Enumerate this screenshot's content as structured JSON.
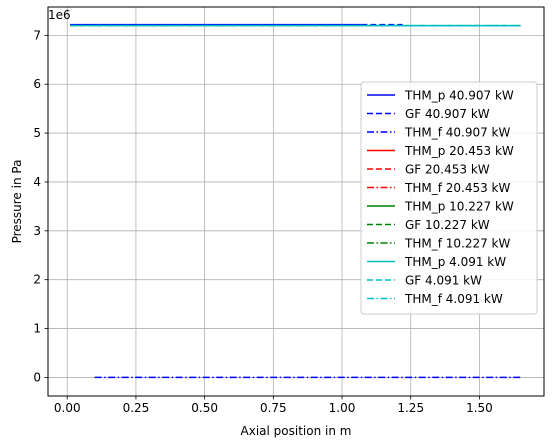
{
  "chart_data": {
    "type": "line",
    "title": "",
    "xlabel": "Axial position in m",
    "ylabel": "Pressure in Pa",
    "y_offset_label": "1e6",
    "xlim": [
      -0.07,
      1.735
    ],
    "ylim": [
      -0.38,
      7.58
    ],
    "y_scale_factor": 1000000,
    "x_ticks": [
      0.0,
      0.25,
      0.5,
      0.75,
      1.0,
      1.25,
      1.5
    ],
    "x_tick_labels": [
      "0.00",
      "0.25",
      "0.50",
      "0.75",
      "1.00",
      "1.25",
      "1.50"
    ],
    "y_ticks": [
      0,
      1,
      2,
      3,
      4,
      5,
      6,
      7
    ],
    "y_tick_labels": [
      "0",
      "1",
      "2",
      "3",
      "4",
      "5",
      "6",
      "7"
    ],
    "grid": true,
    "legend_position": "right",
    "series": [
      {
        "name": "THM_p 40.907 kW",
        "color": "#0000ff",
        "style": "solid",
        "x": [
          0.01,
          1.07
        ],
        "y": [
          7.22,
          7.22
        ]
      },
      {
        "name": "GF 40.907 kW",
        "color": "#0000ff",
        "style": "dashed",
        "x": [
          1.07,
          1.22
        ],
        "y": [
          7.22,
          7.22
        ]
      },
      {
        "name": "THM_f 40.907 kW",
        "color": "#0000ff",
        "style": "dashdot",
        "x": [
          0.1,
          1.65
        ],
        "y": [
          0.0,
          0.0
        ]
      },
      {
        "name": "THM_p 20.453 kW",
        "color": "#ff0000",
        "style": "solid",
        "x": [],
        "y": []
      },
      {
        "name": "GF 20.453 kW",
        "color": "#ff0000",
        "style": "dashed",
        "x": [],
        "y": []
      },
      {
        "name": "THM_f 20.453 kW",
        "color": "#ff0000",
        "style": "dashdot",
        "x": [],
        "y": []
      },
      {
        "name": "THM_p 10.227 kW",
        "color": "#008000",
        "style": "solid",
        "x": [],
        "y": []
      },
      {
        "name": "GF 10.227 kW",
        "color": "#008000",
        "style": "dashed",
        "x": [],
        "y": []
      },
      {
        "name": "THM_f 10.227 kW",
        "color": "#008000",
        "style": "dashdot",
        "x": [],
        "y": []
      },
      {
        "name": "THM_p 4.091 kW",
        "color": "#00bfbf",
        "style": "solid",
        "x": [
          0.01,
          1.65
        ],
        "y": [
          7.2,
          7.2
        ]
      },
      {
        "name": "GF 4.091 kW",
        "color": "#00bfbf",
        "style": "dashed",
        "x": [
          0.01,
          1.65
        ],
        "y": [
          7.2,
          7.2
        ]
      },
      {
        "name": "THM_f 4.091 kW",
        "color": "#00bfbf",
        "style": "dashdot",
        "x": [
          0.1,
          1.65
        ],
        "y": [
          7.2,
          7.2
        ]
      }
    ]
  }
}
